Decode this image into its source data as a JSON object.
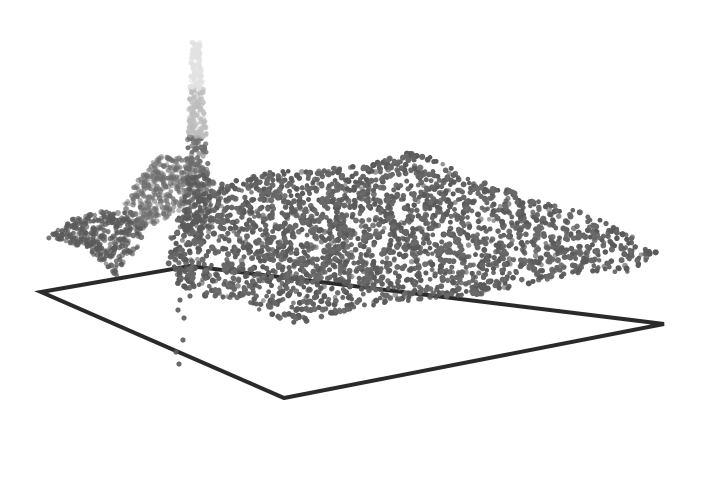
{
  "scene": {
    "description_type": "3d-point-cloud-render",
    "background_color": "#ffffff",
    "frame_color": "#2a2a2a",
    "point_color_dark": "#5a5a5a",
    "point_color_mid": "#6e6e6e",
    "point_color_light": "#bdbdbd",
    "point_color_faint": "#e2e2e2"
  }
}
